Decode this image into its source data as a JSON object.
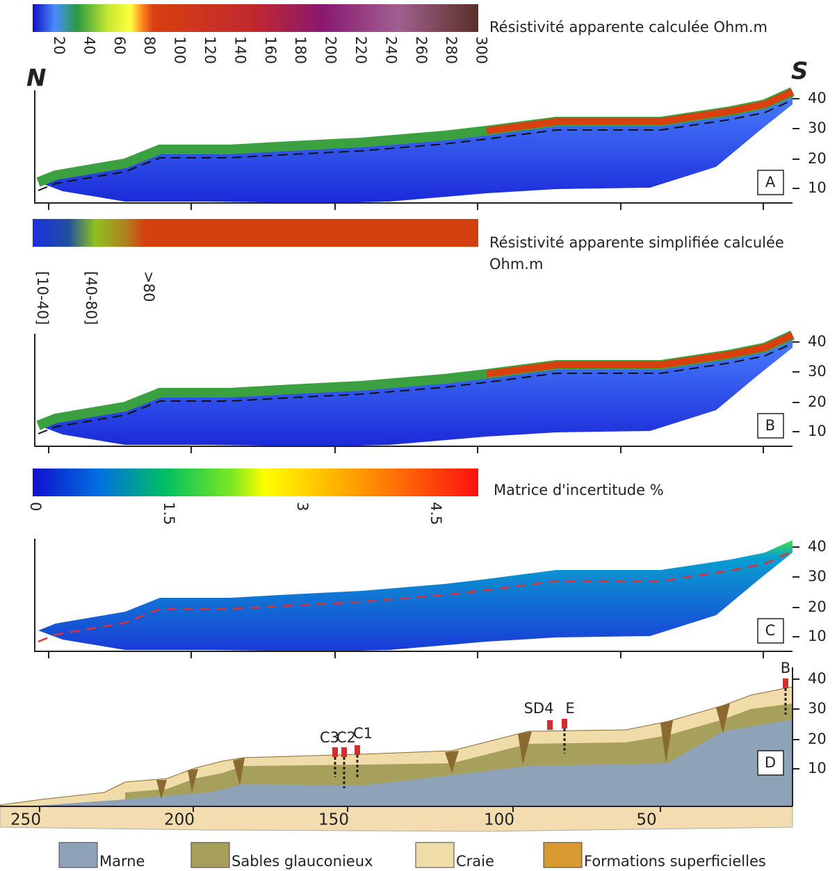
{
  "orientation": {
    "north": "N",
    "south": "S"
  },
  "colorbar_a": {
    "label": "Résistivité apparente calculée Ohm.m",
    "ticks": [
      "20",
      "40",
      "60",
      "80",
      "100",
      "120",
      "140",
      "160",
      "180",
      "200",
      "220",
      "240",
      "260",
      "280",
      "300"
    ]
  },
  "colorbar_b": {
    "label_line1": "Résistivité apparente simplifiée calculée",
    "label_line2": "Ohm.m",
    "ticks": [
      "[10-40]",
      "[40-80]",
      ">80"
    ]
  },
  "colorbar_c": {
    "label": "Matrice d'incertitude %",
    "ticks": [
      "0",
      "1.5",
      "3",
      "4.5"
    ]
  },
  "panels": [
    {
      "label": "A",
      "elevation_ticks": [
        "40",
        "30",
        "20",
        "10"
      ]
    },
    {
      "label": "B",
      "elevation_ticks": [
        "40",
        "30",
        "20",
        "10"
      ]
    },
    {
      "label": "C",
      "elevation_ticks": [
        "40",
        "30",
        "20",
        "10"
      ]
    },
    {
      "label": "D",
      "elevation_ticks": [
        "40",
        "30",
        "20",
        "10"
      ]
    }
  ],
  "section_d": {
    "boreholes": [
      "C3",
      "C2",
      "C1",
      "SD4",
      "E",
      "B"
    ],
    "distance_ticks": [
      "250",
      "200",
      "150",
      "100",
      "50"
    ]
  },
  "legend": [
    "Marne",
    "Sables glauconieux",
    "Craie",
    "Formations superficielles"
  ]
}
